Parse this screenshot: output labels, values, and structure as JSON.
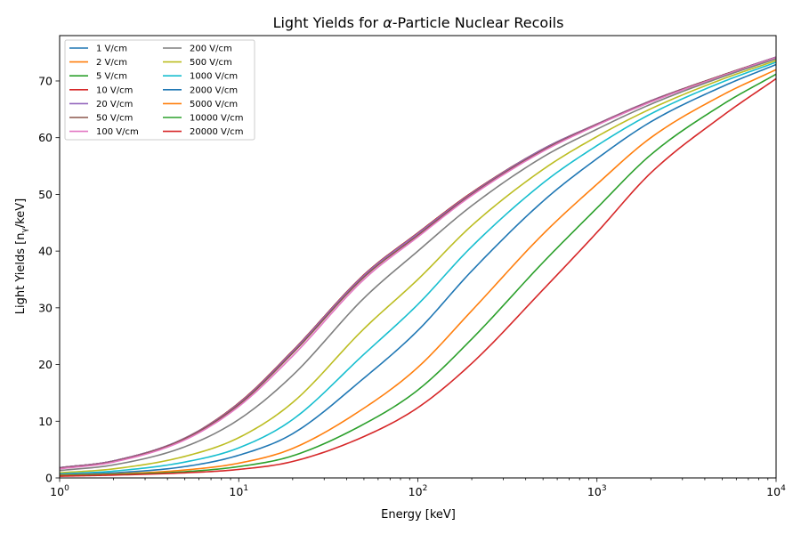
{
  "chart_data": {
    "type": "line",
    "title_prefix": "Light Yields for ",
    "title_alpha": "α",
    "title_suffix": "-Particle Nuclear Recoils",
    "xlabel": "Energy [keV]",
    "ylabel_main": "Light Yields [n",
    "ylabel_sub": "γ",
    "ylabel_end": "/keV]",
    "x_scale": "log",
    "xlim": [
      1,
      10000
    ],
    "ylim": [
      0,
      78
    ],
    "x_ticks": [
      {
        "value": 1,
        "base": "10",
        "exp": "0"
      },
      {
        "value": 10,
        "base": "10",
        "exp": "1"
      },
      {
        "value": 100,
        "base": "10",
        "exp": "2"
      },
      {
        "value": 1000,
        "base": "10",
        "exp": "3"
      },
      {
        "value": 10000,
        "base": "10",
        "exp": "4"
      }
    ],
    "y_ticks": [
      0,
      10,
      20,
      30,
      40,
      50,
      60,
      70
    ],
    "grid": false,
    "legend_position": "top-left",
    "x": [
      1,
      2,
      5,
      10,
      20,
      50,
      100,
      200,
      500,
      1000,
      2000,
      5000,
      10000
    ],
    "series": [
      {
        "name": "1 V/cm",
        "color": "#1f77b4",
        "values": [
          1.8,
          3.0,
          7.0,
          13.2,
          22.4,
          35.8,
          43.2,
          50.3,
          58.0,
          62.4,
          66.5,
          71.0,
          74.2
        ]
      },
      {
        "name": "2 V/cm",
        "color": "#ff7f0e",
        "values": [
          1.8,
          3.0,
          7.0,
          13.2,
          22.4,
          35.8,
          43.2,
          50.3,
          58.0,
          62.4,
          66.5,
          71.0,
          74.2
        ]
      },
      {
        "name": "5 V/cm",
        "color": "#2ca02c",
        "values": [
          1.8,
          3.0,
          7.0,
          13.2,
          22.4,
          35.8,
          43.2,
          50.3,
          58.0,
          62.4,
          66.5,
          71.0,
          74.2
        ]
      },
      {
        "name": "10 V/cm",
        "color": "#d62728",
        "values": [
          1.8,
          3.0,
          7.0,
          13.2,
          22.4,
          35.8,
          43.2,
          50.3,
          58.0,
          62.4,
          66.5,
          71.0,
          74.2
        ]
      },
      {
        "name": "20 V/cm",
        "color": "#9467bd",
        "values": [
          1.8,
          3.0,
          7.0,
          13.1,
          22.3,
          35.7,
          43.1,
          50.2,
          58.0,
          62.4,
          66.5,
          71.0,
          74.2
        ]
      },
      {
        "name": "50 V/cm",
        "color": "#8c564b",
        "values": [
          1.7,
          2.9,
          6.9,
          12.9,
          22.0,
          35.4,
          42.8,
          50.0,
          57.8,
          62.3,
          66.4,
          71.0,
          74.1
        ]
      },
      {
        "name": "100 V/cm",
        "color": "#e377c2",
        "values": [
          1.6,
          2.8,
          6.7,
          12.6,
          21.5,
          35.0,
          42.5,
          49.8,
          57.6,
          62.2,
          66.3,
          70.9,
          74.1
        ]
      },
      {
        "name": "200 V/cm",
        "color": "#7f7f7f",
        "values": [
          1.3,
          2.3,
          5.5,
          10.3,
          18.1,
          31.7,
          40.0,
          48.0,
          56.6,
          61.5,
          65.9,
          70.7,
          73.9
        ]
      },
      {
        "name": "500 V/cm",
        "color": "#bcbd22",
        "values": [
          0.9,
          1.6,
          3.8,
          7.1,
          13.3,
          26.3,
          35.0,
          44.5,
          54.4,
          60.2,
          65.1,
          70.3,
          73.6
        ]
      },
      {
        "name": "1000 V/cm",
        "color": "#17becf",
        "values": [
          0.7,
          1.2,
          2.8,
          5.3,
          10.3,
          21.8,
          30.6,
          40.8,
          52.0,
          58.6,
          64.2,
          69.8,
          73.3
        ]
      },
      {
        "name": "2000 V/cm",
        "color": "#1f77b4",
        "values": [
          0.6,
          0.9,
          2.0,
          4.0,
          7.8,
          17.6,
          26.0,
          36.5,
          48.8,
          56.3,
          62.8,
          69.0,
          72.9
        ]
      },
      {
        "name": "5000 V/cm",
        "color": "#ff7f0e",
        "values": [
          0.5,
          0.7,
          1.4,
          2.6,
          5.2,
          12.3,
          19.5,
          29.5,
          43.0,
          51.8,
          60.0,
          67.5,
          72.0
        ]
      },
      {
        "name": "10000 V/cm",
        "color": "#2ca02c",
        "values": [
          0.4,
          0.6,
          1.1,
          2.0,
          3.9,
          9.5,
          15.5,
          24.5,
          38.0,
          47.6,
          57.0,
          65.8,
          71.2
        ]
      },
      {
        "name": "20000 V/cm",
        "color": "#d62728",
        "values": [
          0.3,
          0.5,
          0.9,
          1.5,
          2.9,
          7.3,
          12.4,
          20.2,
          33.2,
          43.3,
          53.8,
          63.8,
          70.4
        ]
      }
    ]
  }
}
